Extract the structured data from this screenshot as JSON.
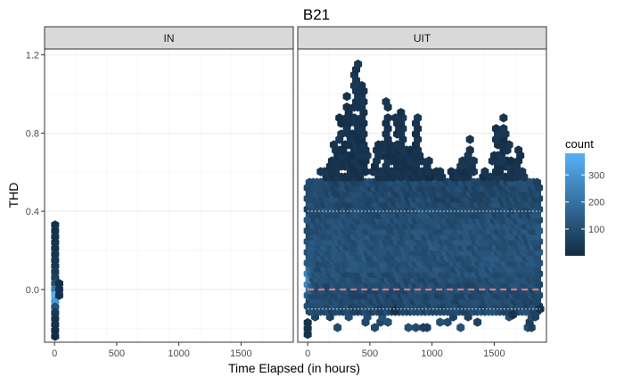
{
  "chart_data": {
    "type": "heatmap",
    "title": "B21",
    "xlabel": "Time Elapsed (in hours)",
    "ylabel": "THD",
    "xlim": [
      -80,
      1920
    ],
    "ylim": [
      -0.27,
      1.23
    ],
    "x_ticks": [
      0,
      500,
      1000,
      1500
    ],
    "x_tick_labels": [
      "0",
      "500",
      "1000",
      "1500"
    ],
    "y_ticks": [
      0.0,
      0.4,
      0.8,
      1.2
    ],
    "y_tick_labels": [
      "0.0",
      "0.4",
      "0.8",
      "1.2"
    ],
    "grid": true,
    "legend": {
      "title": "count",
      "position": "right",
      "ticks": [
        100,
        200,
        300
      ],
      "tick_labels": [
        "100",
        "200",
        "300"
      ],
      "range": [
        1,
        380
      ],
      "low_color": "#132b43",
      "high_color": "#56b1f7"
    },
    "panels": [
      {
        "label": "IN",
        "points": [
          {
            "x": 5,
            "y": 0.33,
            "count": 8
          },
          {
            "x": 5,
            "y": 0.3,
            "count": 10
          },
          {
            "x": 5,
            "y": 0.27,
            "count": 12
          },
          {
            "x": 5,
            "y": 0.24,
            "count": 14
          },
          {
            "x": 5,
            "y": 0.21,
            "count": 16
          },
          {
            "x": 5,
            "y": 0.18,
            "count": 18
          },
          {
            "x": 5,
            "y": 0.15,
            "count": 20
          },
          {
            "x": 5,
            "y": 0.12,
            "count": 24
          },
          {
            "x": 5,
            "y": 0.09,
            "count": 30
          },
          {
            "x": 5,
            "y": 0.06,
            "count": 40
          },
          {
            "x": 5,
            "y": 0.03,
            "count": 80
          },
          {
            "x": 5,
            "y": 0.0,
            "count": 200
          },
          {
            "x": 5,
            "y": -0.03,
            "count": 370
          },
          {
            "x": 5,
            "y": -0.06,
            "count": 300
          },
          {
            "x": 5,
            "y": -0.09,
            "count": 90
          },
          {
            "x": 5,
            "y": -0.12,
            "count": 30
          },
          {
            "x": 5,
            "y": -0.15,
            "count": 15
          },
          {
            "x": 5,
            "y": -0.18,
            "count": 10
          },
          {
            "x": 5,
            "y": -0.21,
            "count": 6
          },
          {
            "x": 5,
            "y": -0.24,
            "count": 4
          },
          {
            "x": 38,
            "y": 0.0,
            "count": 15
          },
          {
            "x": 38,
            "y": -0.03,
            "count": 12
          },
          {
            "x": 38,
            "y": 0.03,
            "count": 8
          }
        ]
      },
      {
        "label": "UIT",
        "density_x_range": [
          0,
          1870
        ],
        "density_base": [
          -0.13,
          0.57
        ],
        "peaks": [
          {
            "x": 120,
            "ymax": 0.62
          },
          {
            "x": 220,
            "ymax": 0.78
          },
          {
            "x": 260,
            "ymax": 0.9
          },
          {
            "x": 320,
            "ymax": 1.0
          },
          {
            "x": 380,
            "ymax": 1.1
          },
          {
            "x": 400,
            "ymax": 1.16
          },
          {
            "x": 440,
            "ymax": 1.05
          },
          {
            "x": 560,
            "ymax": 0.75
          },
          {
            "x": 640,
            "ymax": 0.98
          },
          {
            "x": 720,
            "ymax": 0.88
          },
          {
            "x": 760,
            "ymax": 0.92
          },
          {
            "x": 820,
            "ymax": 0.75
          },
          {
            "x": 880,
            "ymax": 0.88
          },
          {
            "x": 960,
            "ymax": 0.7
          },
          {
            "x": 1060,
            "ymax": 0.65
          },
          {
            "x": 1160,
            "ymax": 0.62
          },
          {
            "x": 1240,
            "ymax": 0.7
          },
          {
            "x": 1300,
            "ymax": 0.78
          },
          {
            "x": 1400,
            "ymax": 0.7
          },
          {
            "x": 1440,
            "ymax": 0.65
          },
          {
            "x": 1520,
            "ymax": 0.85
          },
          {
            "x": 1580,
            "ymax": 0.88
          },
          {
            "x": 1620,
            "ymax": 0.75
          },
          {
            "x": 1700,
            "ymax": 0.72
          }
        ],
        "hot_spot": {
          "x": 5,
          "y": 0.05
        },
        "ref_lines": [
          {
            "y": 0.4,
            "style": "dotted",
            "color": "#ffffff",
            "x0": 0,
            "x1": 1870
          },
          {
            "y": 0.0,
            "style": "dashed",
            "color": "#f08080",
            "x0": 0,
            "x1": 1870
          },
          {
            "y": -0.1,
            "style": "dotted",
            "color": "#ffffff",
            "x0": 0,
            "x1": 1870
          }
        ]
      }
    ]
  }
}
